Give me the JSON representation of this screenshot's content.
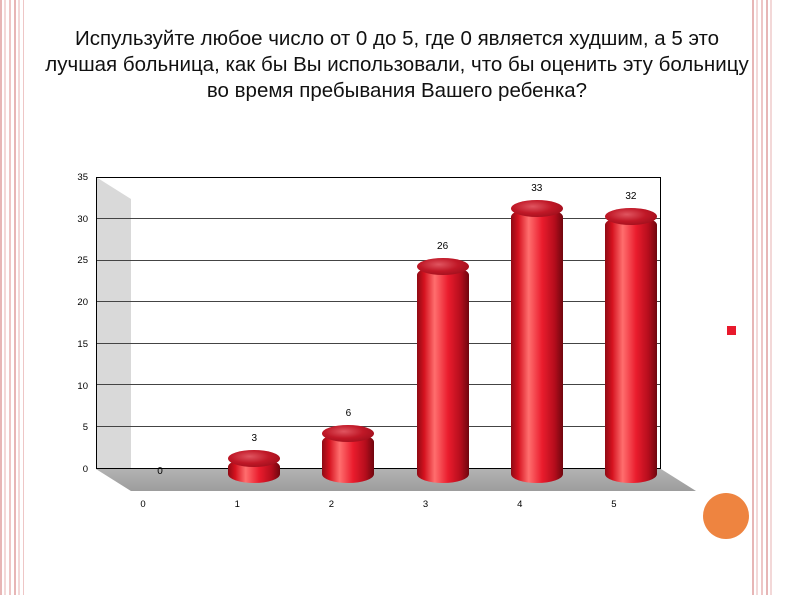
{
  "slide": {
    "title": "Испульзуйте любое число от 0 до 5, где 0 является худшим, а 5 это лучшая больница, как бы Вы использовали, что бы оценить эту больницу во время пребывания Вашего ребенка?"
  },
  "chart_data": {
    "type": "bar",
    "subtype": "3d-cylinder",
    "categories": [
      "0",
      "1",
      "2",
      "3",
      "4",
      "5"
    ],
    "values": [
      0,
      3,
      6,
      26,
      33,
      32
    ],
    "data_labels": [
      0,
      3,
      6,
      26,
      33,
      32
    ],
    "title": "",
    "xlabel": "",
    "ylabel": "",
    "ylim": [
      0,
      35
    ],
    "yticks": [
      0,
      5,
      10,
      15,
      20,
      25,
      30,
      35
    ],
    "grid": true,
    "bar_color": "#e8192c",
    "wall_color": "#ffffff",
    "floor_color": "#a6a6a6",
    "legend_position": "right"
  },
  "decor": {
    "legend_marker_color": "#e8192c",
    "accent_circle_color": "#ee8440",
    "stripe_color": "#e7b6b6"
  }
}
